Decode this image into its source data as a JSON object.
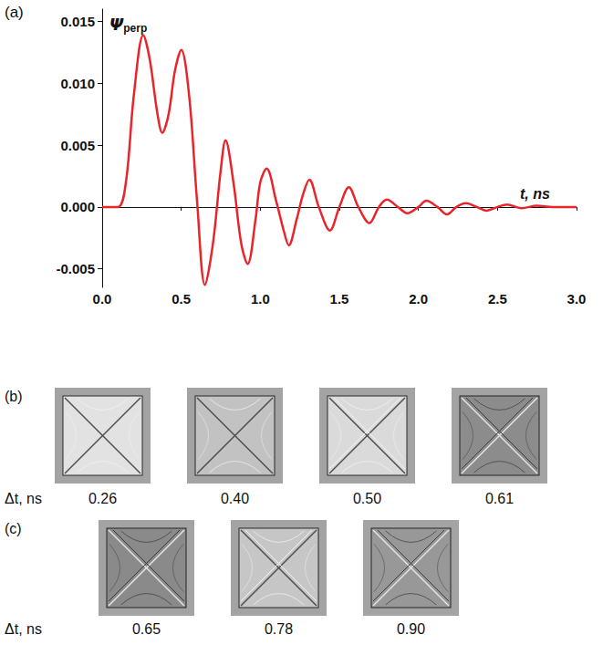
{
  "chart_data": {
    "type": "line",
    "panel_label": "(a)",
    "ylabel": "Ψperp",
    "xlabel": "t, ns",
    "color": "#e8252b",
    "line_style": "solid",
    "grid": false,
    "x": [
      0,
      0.1,
      0.15,
      0.2,
      0.26,
      0.3,
      0.35,
      0.38,
      0.42,
      0.46,
      0.5,
      0.55,
      0.6,
      0.65,
      0.7,
      0.75,
      0.78,
      0.83,
      0.88,
      0.92,
      0.97,
      1.0,
      1.04,
      1.1,
      1.15,
      1.18,
      1.23,
      1.27,
      1.31,
      1.37,
      1.44,
      1.5,
      1.56,
      1.62,
      1.69,
      1.75,
      1.8,
      1.87,
      1.93,
      2.0,
      2.05,
      2.12,
      2.18,
      2.24,
      2.3,
      2.37,
      2.43,
      2.5,
      2.56,
      2.65,
      2.75,
      2.85,
      3.0
    ],
    "values": [
      0,
      0,
      0.002,
      0.009,
      0.0139,
      0.012,
      0.0075,
      0.006,
      0.0075,
      0.011,
      0.0127,
      0.009,
      0.0005,
      -0.0063,
      -0.003,
      0.003,
      0.0054,
      0.002,
      -0.003,
      -0.0046,
      -0.001,
      0.002,
      0.0031,
      0.0005,
      -0.002,
      -0.0031,
      -0.001,
      0.001,
      0.0022,
      0,
      -0.0019,
      0,
      0.0016,
      0,
      -0.0013,
      0,
      0.0006,
      0,
      -0.0005,
      0,
      0.0005,
      0,
      -0.0006,
      0,
      0.0003,
      0,
      -0.0003,
      0,
      0.0002,
      -0.0001,
      0.0001,
      0,
      0
    ],
    "xlim": [
      0,
      3.0
    ],
    "ylim": [
      -0.0065,
      0.016
    ],
    "xticks": [
      {
        "value": 0,
        "label": "0.0"
      },
      {
        "value": 0.5,
        "label": "0.5"
      },
      {
        "value": 1,
        "label": "1.0"
      },
      {
        "value": 1.5,
        "label": "1.5"
      },
      {
        "value": 2,
        "label": "2.0"
      },
      {
        "value": 2.5,
        "label": "2.5"
      },
      {
        "value": 3,
        "label": "3.0"
      }
    ],
    "yticks": [
      -0.005,
      {
        "value": 0,
        "label": "0.000"
      },
      0.005,
      {
        "value": 0.01,
        "label": "0.010"
      },
      0.015
    ]
  },
  "panels": [
    {
      "label": "(b)",
      "row_label": "Δt, ns",
      "frames": [
        "0.26",
        "0.40",
        "0.50",
        "0.61"
      ]
    },
    {
      "label": "(c)",
      "row_label": "Δt, ns",
      "frames": [
        "0.65",
        "0.78",
        "0.90"
      ]
    }
  ]
}
